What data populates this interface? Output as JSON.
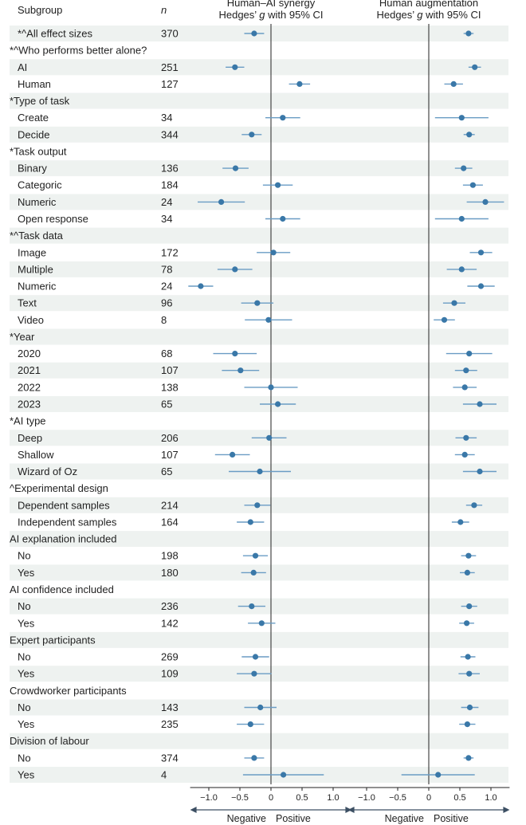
{
  "header": {
    "subgroup": "Subgroup",
    "n": "n",
    "panel1_line1": "Human–AI synergy",
    "panel1_line2_pre": "Hedges’ ",
    "panel1_line2_g": "g",
    "panel1_line2_post": " with 95% CI",
    "panel2_line1": "Human augmentation",
    "panel2_line2_pre": "Hedges’ ",
    "panel2_line2_g": "g",
    "panel2_line2_post": " with 95% CI"
  },
  "colors": {
    "point": "#3a78a8",
    "ci": "#6a9cc4",
    "band": "#eef2f0",
    "text": "#222222",
    "axis": "#222222"
  },
  "chart_data": {
    "type": "forest",
    "xlim": [
      -1.3,
      1.3
    ],
    "xticks": [
      -1.0,
      -0.5,
      0,
      0.5,
      1.0
    ],
    "xtick_labels": [
      "−1.0",
      "−0.5",
      "0",
      "0.5",
      "1.0"
    ],
    "axis_labels": {
      "negative": "Negative",
      "positive": "Positive"
    },
    "panels": [
      "Human–AI synergy",
      "Human augmentation"
    ],
    "rows": [
      {
        "label": "*^All effect sizes",
        "n": "370",
        "shade": true,
        "synergy": [
          -0.27,
          -0.43,
          -0.11
        ],
        "augmentation": [
          0.64,
          0.56,
          0.72
        ]
      },
      {
        "label": "*^Who performs better alone?",
        "header": true,
        "shade": false
      },
      {
        "label": "AI",
        "n": "251",
        "shade": true,
        "synergy": [
          -0.58,
          -0.73,
          -0.43
        ],
        "augmentation": [
          0.74,
          0.64,
          0.84
        ]
      },
      {
        "label": "Human",
        "n": "127",
        "shade": false,
        "synergy": [
          0.46,
          0.29,
          0.63
        ],
        "augmentation": [
          0.4,
          0.25,
          0.55
        ]
      },
      {
        "label": "*Type of task",
        "header": true,
        "shade": true
      },
      {
        "label": "Create",
        "n": "34",
        "shade": false,
        "synergy": [
          0.19,
          -0.09,
          0.47
        ],
        "augmentation": [
          0.53,
          0.1,
          0.96
        ]
      },
      {
        "label": "Decide",
        "n": "344",
        "shade": true,
        "synergy": [
          -0.31,
          -0.47,
          -0.15
        ],
        "augmentation": [
          0.65,
          0.56,
          0.74
        ]
      },
      {
        "label": "*Task output",
        "header": true,
        "shade": false
      },
      {
        "label": "Binary",
        "n": "136",
        "shade": true,
        "synergy": [
          -0.57,
          -0.78,
          -0.36
        ],
        "augmentation": [
          0.56,
          0.42,
          0.7
        ]
      },
      {
        "label": "Categoric",
        "n": "184",
        "shade": false,
        "synergy": [
          0.11,
          -0.13,
          0.35
        ],
        "augmentation": [
          0.71,
          0.55,
          0.87
        ]
      },
      {
        "label": "Numeric",
        "n": "24",
        "shade": true,
        "synergy": [
          -0.8,
          -1.18,
          -0.42
        ],
        "augmentation": [
          0.91,
          0.61,
          1.21
        ]
      },
      {
        "label": "Open response",
        "n": "34",
        "shade": false,
        "synergy": [
          0.19,
          -0.09,
          0.47
        ],
        "augmentation": [
          0.53,
          0.1,
          0.96
        ]
      },
      {
        "label": "*^Task data",
        "header": true,
        "shade": true
      },
      {
        "label": "Image",
        "n": "172",
        "shade": false,
        "synergy": [
          0.04,
          -0.23,
          0.31
        ],
        "augmentation": [
          0.84,
          0.66,
          1.02
        ]
      },
      {
        "label": "Multiple",
        "n": "78",
        "shade": true,
        "synergy": [
          -0.58,
          -0.86,
          -0.3
        ],
        "augmentation": [
          0.53,
          0.29,
          0.77
        ]
      },
      {
        "label": "Numeric",
        "n": "24",
        "shade": false,
        "synergy": [
          -1.13,
          -1.33,
          -0.93
        ],
        "augmentation": [
          0.84,
          0.62,
          1.06
        ]
      },
      {
        "label": "Text",
        "n": "96",
        "shade": true,
        "synergy": [
          -0.22,
          -0.48,
          0.04
        ],
        "augmentation": [
          0.41,
          0.23,
          0.59
        ]
      },
      {
        "label": "Video",
        "n": "8",
        "shade": false,
        "synergy": [
          -0.04,
          -0.42,
          0.34
        ],
        "augmentation": [
          0.25,
          0.08,
          0.42
        ]
      },
      {
        "label": "*Year",
        "header": true,
        "shade": true
      },
      {
        "label": "2020",
        "n": "68",
        "shade": false,
        "synergy": [
          -0.58,
          -0.93,
          -0.23
        ],
        "augmentation": [
          0.65,
          0.28,
          1.02
        ]
      },
      {
        "label": "2021",
        "n": "107",
        "shade": true,
        "synergy": [
          -0.49,
          -0.79,
          -0.19
        ],
        "augmentation": [
          0.6,
          0.42,
          0.78
        ]
      },
      {
        "label": "2022",
        "n": "138",
        "shade": false,
        "synergy": [
          0.0,
          -0.43,
          0.43
        ],
        "augmentation": [
          0.58,
          0.39,
          0.77
        ]
      },
      {
        "label": "2023",
        "n": "65",
        "shade": true,
        "synergy": [
          0.11,
          -0.18,
          0.4
        ],
        "augmentation": [
          0.82,
          0.55,
          1.09
        ]
      },
      {
        "label": "*AI type",
        "header": true,
        "shade": false
      },
      {
        "label": "Deep",
        "n": "206",
        "shade": true,
        "synergy": [
          -0.03,
          -0.31,
          0.25
        ],
        "augmentation": [
          0.6,
          0.43,
          0.77
        ]
      },
      {
        "label": "Shallow",
        "n": "107",
        "shade": false,
        "synergy": [
          -0.62,
          -0.9,
          -0.34
        ],
        "augmentation": [
          0.58,
          0.42,
          0.74
        ]
      },
      {
        "label": "Wizard of Oz",
        "n": "65",
        "shade": true,
        "synergy": [
          -0.18,
          -0.68,
          0.32
        ],
        "augmentation": [
          0.82,
          0.55,
          1.09
        ]
      },
      {
        "label": "^Experimental design",
        "header": true,
        "shade": false
      },
      {
        "label": "Dependent samples",
        "n": "214",
        "shade": true,
        "synergy": [
          -0.22,
          -0.43,
          -0.01
        ],
        "augmentation": [
          0.73,
          0.6,
          0.86
        ]
      },
      {
        "label": "Independent samples",
        "n": "164",
        "shade": false,
        "synergy": [
          -0.33,
          -0.55,
          -0.11
        ],
        "augmentation": [
          0.51,
          0.37,
          0.65
        ]
      },
      {
        "label": "AI explanation included",
        "header": true,
        "shade": true
      },
      {
        "label": "No",
        "n": "198",
        "shade": false,
        "synergy": [
          -0.25,
          -0.45,
          -0.05
        ],
        "augmentation": [
          0.64,
          0.52,
          0.76
        ]
      },
      {
        "label": "Yes",
        "n": "180",
        "shade": true,
        "synergy": [
          -0.28,
          -0.48,
          -0.08
        ],
        "augmentation": [
          0.62,
          0.5,
          0.74
        ]
      },
      {
        "label": "AI confidence included",
        "header": true,
        "shade": false
      },
      {
        "label": "No",
        "n": "236",
        "shade": true,
        "synergy": [
          -0.31,
          -0.53,
          -0.09
        ],
        "augmentation": [
          0.65,
          0.52,
          0.78
        ]
      },
      {
        "label": "Yes",
        "n": "142",
        "shade": false,
        "synergy": [
          -0.15,
          -0.37,
          0.07
        ],
        "augmentation": [
          0.61,
          0.49,
          0.73
        ]
      },
      {
        "label": "Expert participants",
        "header": true,
        "shade": true
      },
      {
        "label": "No",
        "n": "269",
        "shade": false,
        "synergy": [
          -0.25,
          -0.47,
          -0.03
        ],
        "augmentation": [
          0.63,
          0.51,
          0.75
        ]
      },
      {
        "label": "Yes",
        "n": "109",
        "shade": true,
        "synergy": [
          -0.27,
          -0.55,
          0.01
        ],
        "augmentation": [
          0.65,
          0.48,
          0.82
        ]
      },
      {
        "label": "Crowdworker participants",
        "header": true,
        "shade": false
      },
      {
        "label": "No",
        "n": "143",
        "shade": true,
        "synergy": [
          -0.17,
          -0.43,
          0.09
        ],
        "augmentation": [
          0.66,
          0.52,
          0.8
        ]
      },
      {
        "label": "Yes",
        "n": "235",
        "shade": false,
        "synergy": [
          -0.33,
          -0.55,
          -0.11
        ],
        "augmentation": [
          0.62,
          0.49,
          0.75
        ]
      },
      {
        "label": "Division of labour",
        "header": true,
        "shade": true
      },
      {
        "label": "No",
        "n": "374",
        "shade": false,
        "synergy": [
          -0.27,
          -0.43,
          -0.11
        ],
        "augmentation": [
          0.64,
          0.56,
          0.72
        ]
      },
      {
        "label": "Yes",
        "n": "4",
        "shade": true,
        "synergy": [
          0.2,
          -0.45,
          0.85
        ],
        "augmentation": [
          0.15,
          -0.44,
          0.74
        ]
      }
    ]
  }
}
